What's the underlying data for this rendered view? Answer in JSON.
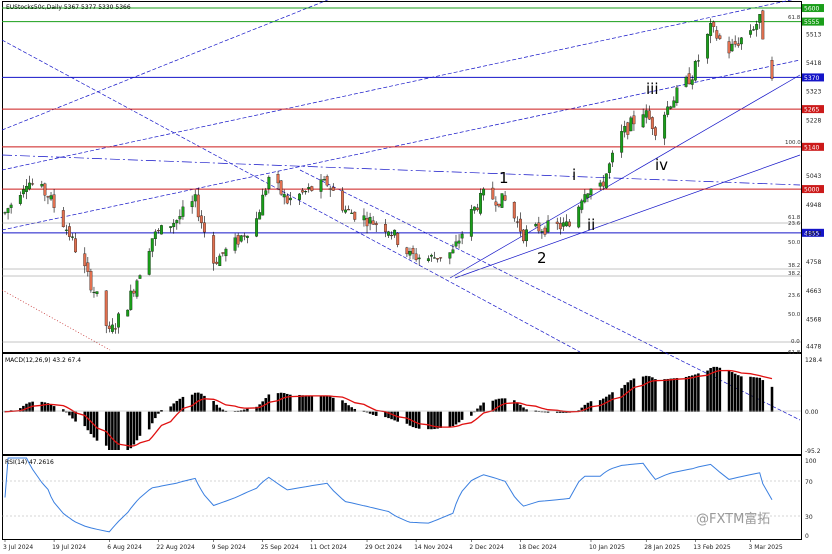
{
  "price_panel": {
    "title": "EUStocks50c,Daily  5367 5377 5330 5366",
    "hlines": [
      {
        "value": 5600,
        "color": "#1a9e1a",
        "label": "5600"
      },
      {
        "value": 5555,
        "color": "#1a9e1a",
        "label": "5555"
      },
      {
        "value": 5370,
        "color": "#1414c8",
        "label": "5370"
      },
      {
        "value": 5265,
        "color": "#cc1a1a",
        "label": "5265"
      },
      {
        "value": 5140,
        "color": "#cc1a1a",
        "label": "5140"
      },
      {
        "value": 5000,
        "color": "#cc1a1a",
        "label": "5000"
      },
      {
        "value": 4855,
        "color": "#1414c8",
        "label": "4855"
      }
    ],
    "axis_labels": [
      "5513",
      "5418",
      "5323",
      "5228",
      "5043",
      "4948",
      "4853",
      "4758",
      "4663",
      "4568",
      "4478"
    ],
    "fib_labels": [
      "61.8",
      "100.0",
      "61.8",
      "23.6",
      "50.0",
      "38.2",
      "38.2",
      "23.6",
      "50.0",
      "0.0",
      "61.8"
    ],
    "waves": [
      "1",
      "2",
      "i",
      "ii",
      "iii",
      "iv"
    ]
  },
  "macd_panel": {
    "title": "MACD(12,26,9) 43.2 67.4",
    "axis_labels": [
      "128.4",
      "0.00",
      "-95.2"
    ]
  },
  "rsi_panel": {
    "title": "RSI(14) 47.2616",
    "axis_labels": [
      "100",
      "70",
      "30",
      "0"
    ]
  },
  "x_axis": {
    "labels": [
      "3 Jul 2024",
      "19 Jul 2024",
      "6 Aug 2024",
      "22 Aug 2024",
      "9 Sep 2024",
      "25 Sep 2024",
      "11 Oct 2024",
      "29 Oct 2024",
      "14 Nov 2024",
      "2 Dec 2024",
      "18 Dec 2024",
      "10 Jan 2025",
      "28 Jan 2025",
      "13 Feb 2025",
      "3 Mar 2025"
    ]
  },
  "watermark": "@FXTM富拓",
  "colors": {
    "bull": "#1a9e1a",
    "bear": "#e07050",
    "macd_hist": "#000000",
    "signal": "#e01010",
    "rsi": "#3a7fe0",
    "trend": "#1414c8"
  },
  "chart_data": {
    "type": "candlestick",
    "title": "EUStocks50c,Daily",
    "ohlc_last": {
      "open": 5367,
      "high": 5377,
      "low": 5330,
      "close": 5366
    },
    "ylim": [
      4460,
      5620
    ],
    "close_path": [
      [
        "2024-07-03",
        4920
      ],
      [
        "2024-07-10",
        5030
      ],
      [
        "2024-07-17",
        4980
      ],
      [
        "2024-07-24",
        4850
      ],
      [
        "2024-08-02",
        4640
      ],
      [
        "2024-08-06",
        4520
      ],
      [
        "2024-08-12",
        4620
      ],
      [
        "2024-08-20",
        4840
      ],
      [
        "2024-08-28",
        4900
      ],
      [
        "2024-09-03",
        4960
      ],
      [
        "2024-09-09",
        4760
      ],
      [
        "2024-09-16",
        4820
      ],
      [
        "2024-09-23",
        4900
      ],
      [
        "2024-09-27",
        5040
      ],
      [
        "2024-10-03",
        4960
      ],
      [
        "2024-10-11",
        5000
      ],
      [
        "2024-10-16",
        5020
      ],
      [
        "2024-10-22",
        4930
      ],
      [
        "2024-10-29",
        4900
      ],
      [
        "2024-11-05",
        4870
      ],
      [
        "2024-11-12",
        4780
      ],
      [
        "2024-11-18",
        4770
      ],
      [
        "2024-11-26",
        4790
      ],
      [
        "2024-12-02",
        4920
      ],
      [
        "2024-12-06",
        4980
      ],
      [
        "2024-12-13",
        4960
      ],
      [
        "2024-12-19",
        4850
      ],
      [
        "2024-12-24",
        4870
      ],
      [
        "2025-01-03",
        4880
      ],
      [
        "2025-01-08",
        5000
      ],
      [
        "2025-01-13",
        5000
      ],
      [
        "2025-01-20",
        5180
      ],
      [
        "2025-01-27",
        5260
      ],
      [
        "2025-01-31",
        5200
      ],
      [
        "2025-02-05",
        5290
      ],
      [
        "2025-02-12",
        5380
      ],
      [
        "2025-02-18",
        5530
      ],
      [
        "2025-02-24",
        5460
      ],
      [
        "2025-03-03",
        5530
      ],
      [
        "2025-03-06",
        5560
      ],
      [
        "2025-03-10",
        5366
      ]
    ],
    "macd": {
      "line": 43.2,
      "signal": 67.4,
      "ylim": [
        -95.2,
        128.4
      ]
    },
    "rsi": {
      "value": 47.2616,
      "levels": [
        70,
        30
      ],
      "ylim": [
        0,
        100
      ]
    }
  }
}
